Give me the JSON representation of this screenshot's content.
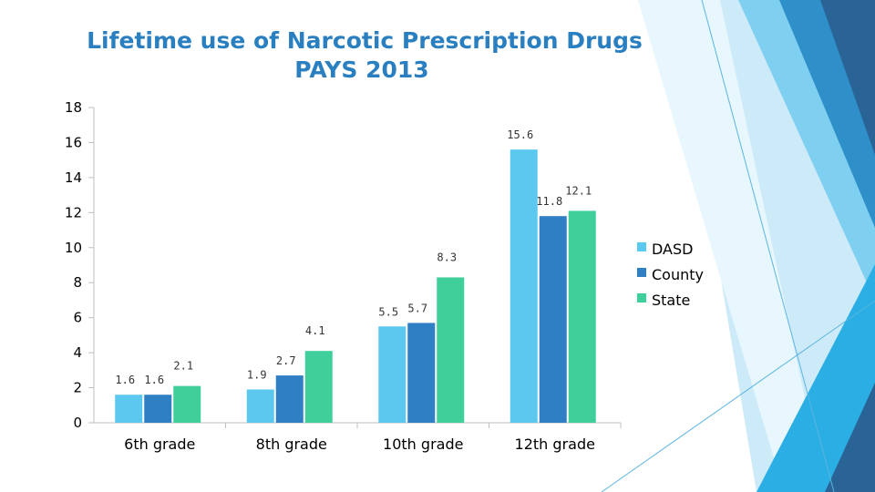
{
  "title": {
    "line1": "Lifetime use of Narcotic Prescription Drugs",
    "line2": "PAYS 2013"
  },
  "colors": {
    "title": "#2a7fc0",
    "deco_light": "#a9dcf3",
    "deco_mid": "#2e8fc9",
    "deco_dark": "#2a6496"
  },
  "chart_data": {
    "type": "bar",
    "title": "Lifetime use of Narcotic Prescription Drugs PAYS 2013",
    "categories": [
      "6th grade",
      "8th grade",
      "10th grade",
      "12th grade"
    ],
    "series": [
      {
        "name": "DASD",
        "color": "#5bc8f0",
        "values": [
          1.6,
          1.9,
          5.5,
          15.6
        ]
      },
      {
        "name": "County",
        "color": "#2f7fc4",
        "values": [
          1.6,
          2.7,
          5.7,
          11.8
        ]
      },
      {
        "name": "State",
        "color": "#3ecf9a",
        "values": [
          2.1,
          4.1,
          8.3,
          12.1
        ]
      }
    ],
    "ylim": [
      0,
      18
    ],
    "yticks": [
      0,
      2,
      4,
      6,
      8,
      10,
      12,
      14,
      16,
      18
    ],
    "xlabel": "",
    "ylabel": "",
    "grid": false,
    "legend": "right"
  }
}
